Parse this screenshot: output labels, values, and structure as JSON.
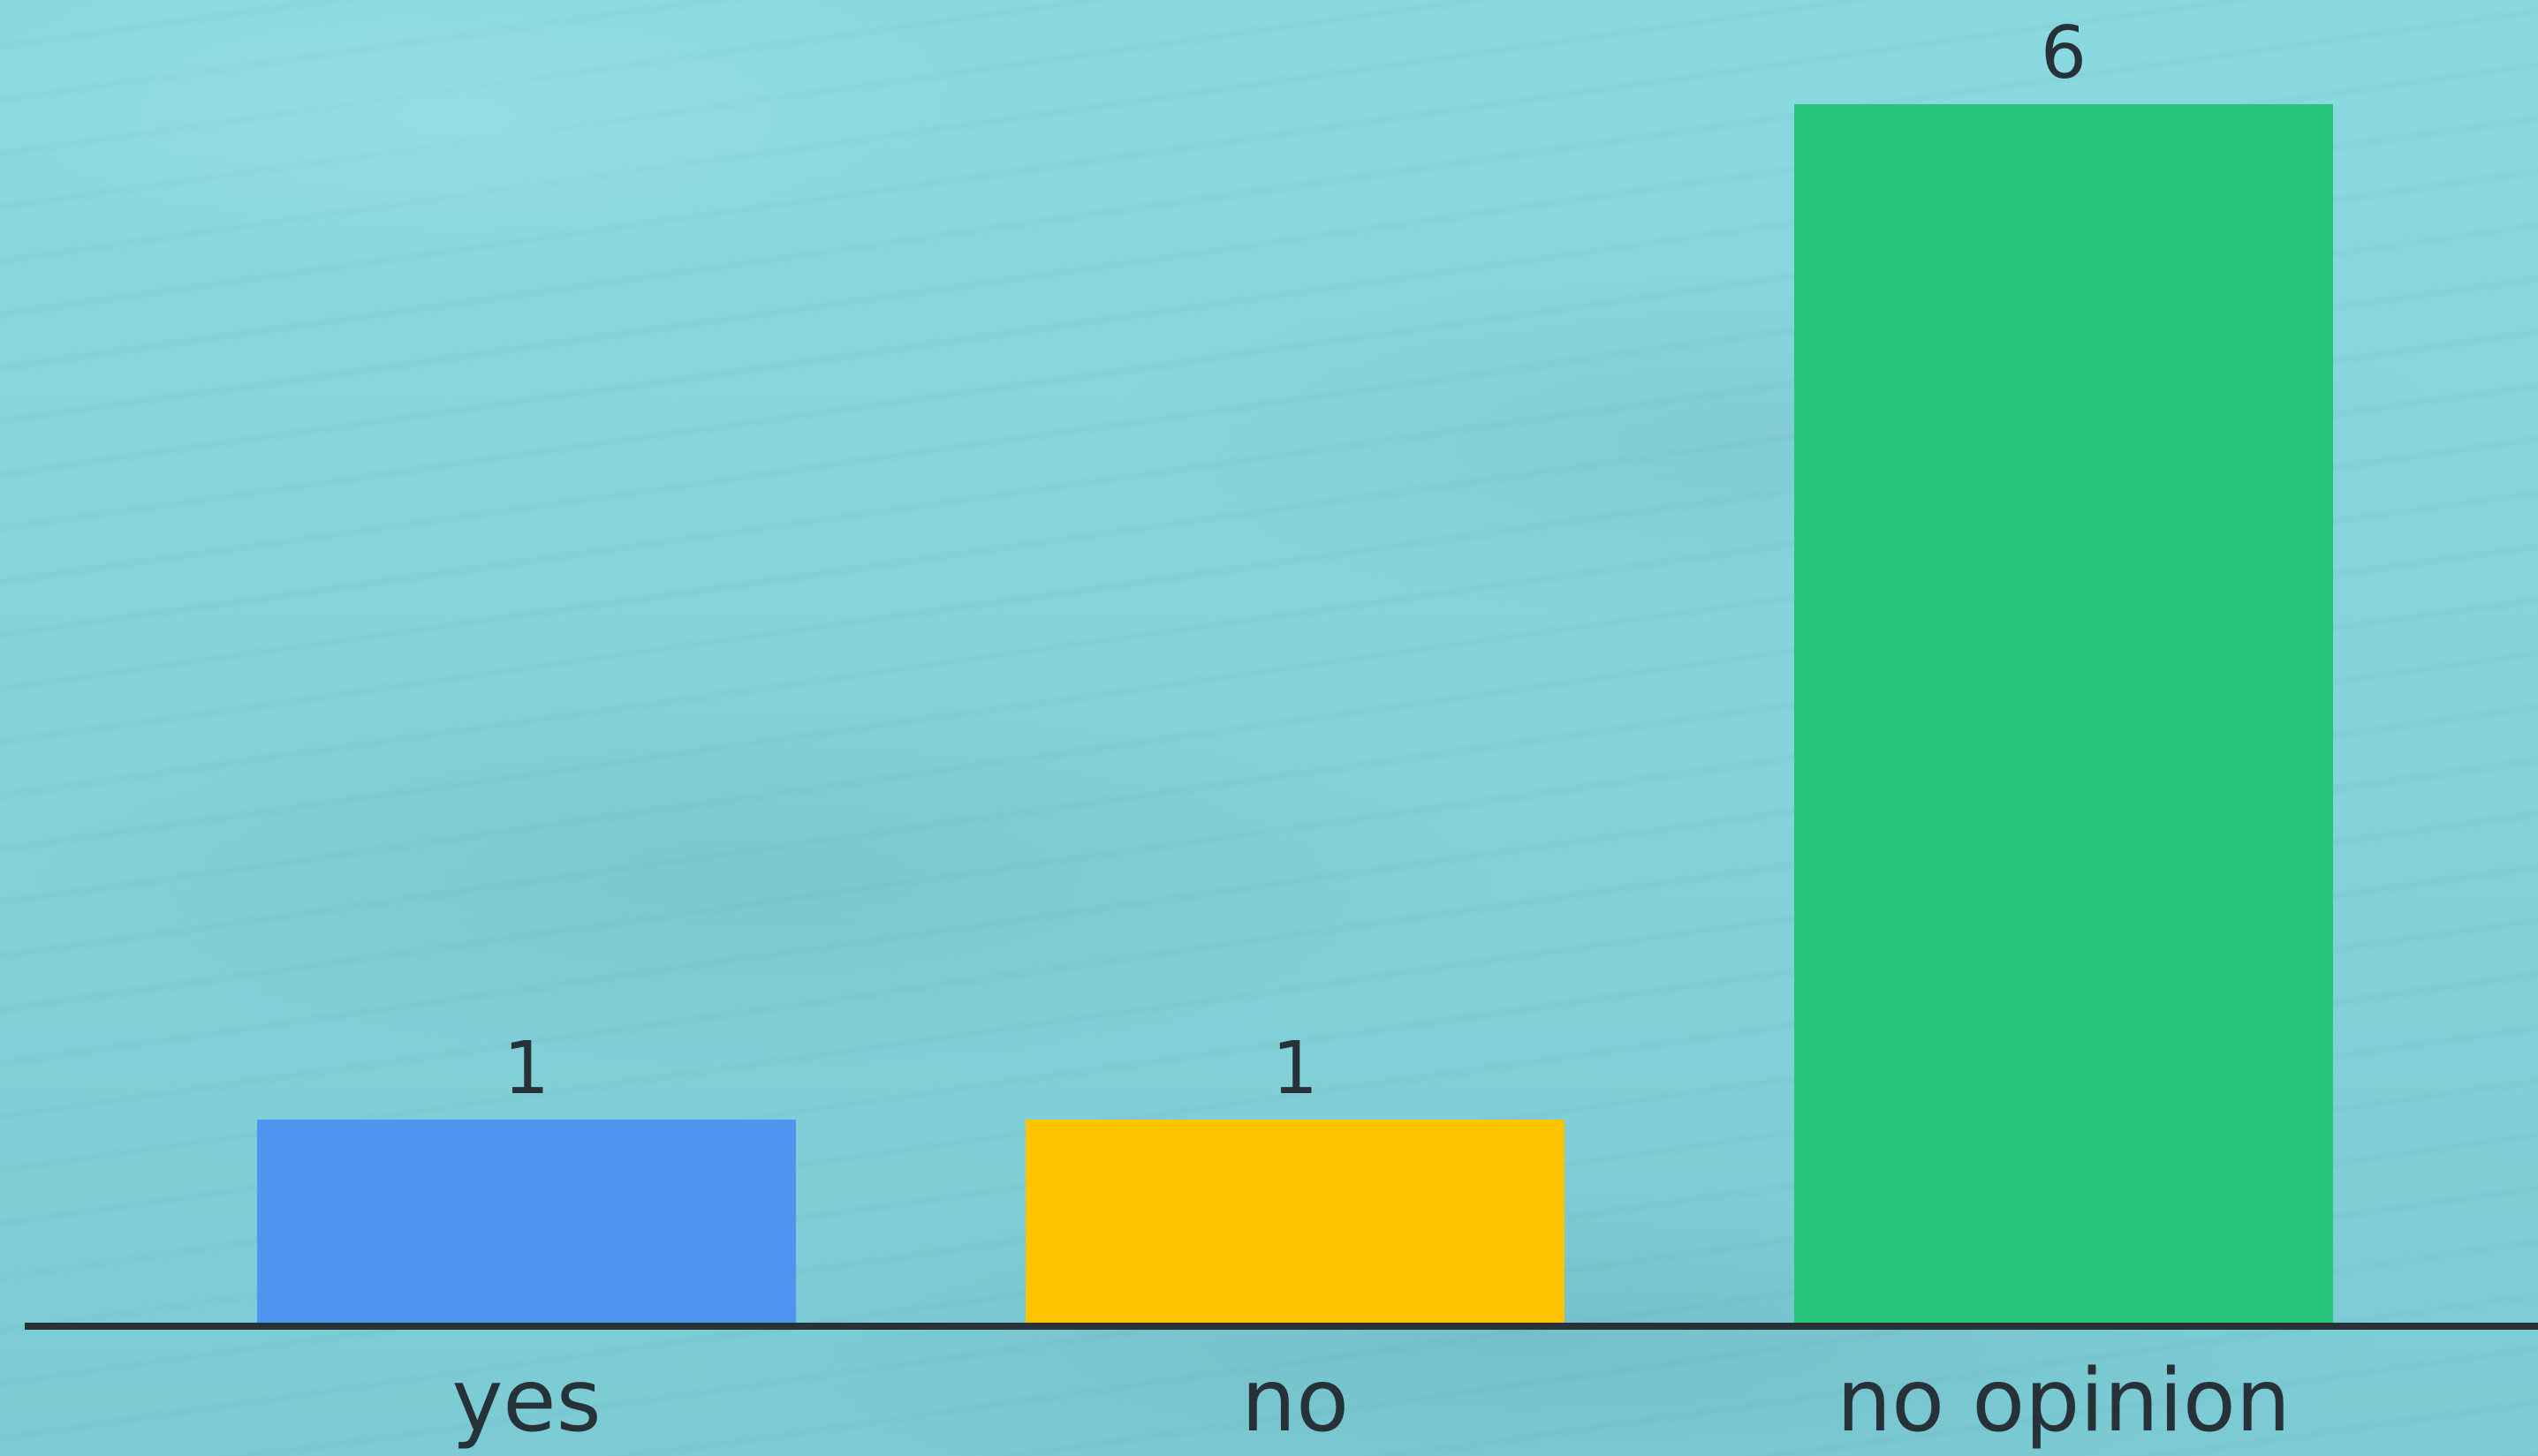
{
  "chart_data": {
    "type": "bar",
    "categories": [
      "yes",
      "no",
      "no opinion"
    ],
    "values": [
      1,
      1,
      6
    ],
    "value_labels": [
      "1",
      "1",
      "6"
    ],
    "colors": [
      "#4f95ef",
      "#fdc300",
      "#27c47c"
    ],
    "axis_color": "#263238",
    "title": "",
    "xlabel": "",
    "ylabel": "",
    "ylim": [
      0,
      6
    ],
    "grid": false,
    "legend": "none"
  }
}
